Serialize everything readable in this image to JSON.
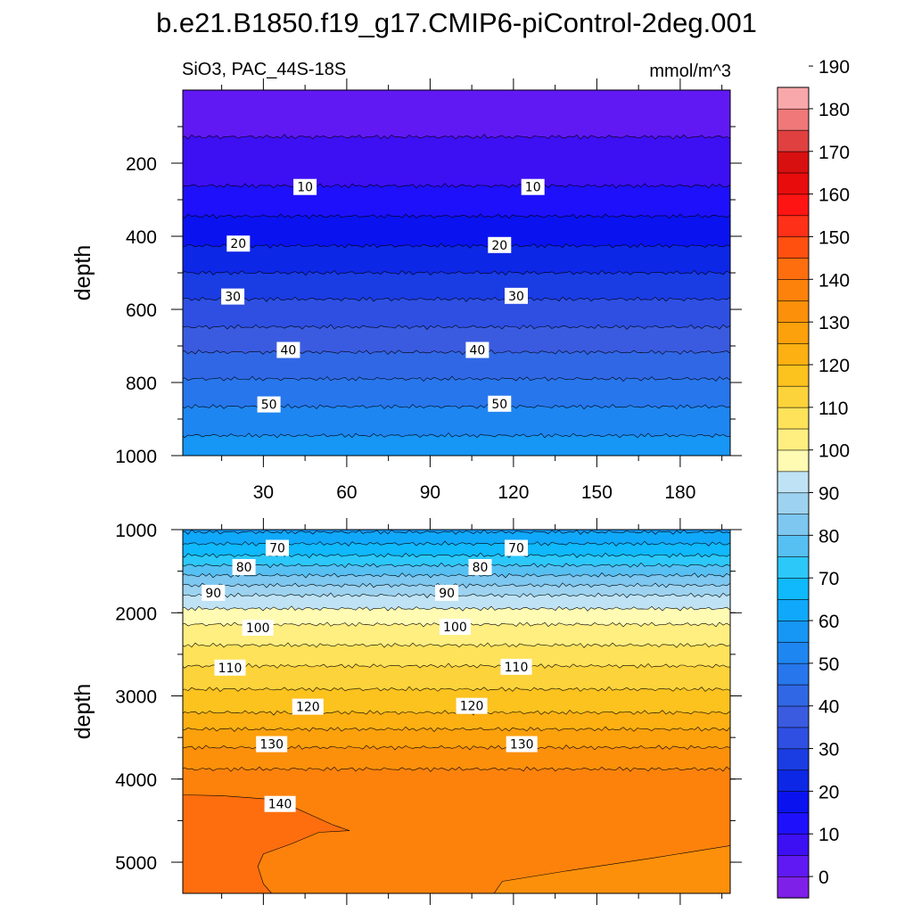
{
  "title": "b.e21.B1850.f19_g17.CMIP6-piControl-2deg.001",
  "variable_label": "SiO3, PAC_44S-18S",
  "units_label": "mmol/m^3",
  "colors": {
    "colorbar": [
      "#7f20e8",
      "#6019f3",
      "#3d0ff3",
      "#1e10fb",
      "#0a12f0",
      "#0d27e6",
      "#1a3ce3",
      "#2e4fe2",
      "#3a5be0",
      "#3067e5",
      "#2776ec",
      "#1e86f1",
      "#1696f5",
      "#10a8fa",
      "#0fb9fb",
      "#2cc8fa",
      "#56c0f3",
      "#7dc7f0",
      "#9dd3f0",
      "#bfe3f5",
      "#fffbb3",
      "#ffee80",
      "#fee25a",
      "#fdd33b",
      "#fcc21e",
      "#fcb012",
      "#fca00c",
      "#fc900b",
      "#fd820c",
      "#fe6e0e",
      "#ff5010",
      "#ff3018",
      "#ff1414",
      "#e80c0c",
      "#d81010",
      "#e04040",
      "#f07878",
      "#f8a8aa"
    ],
    "contour_line": "#000000"
  },
  "chart_data": [
    {
      "type": "contour",
      "panel": "upper",
      "ylabel": "depth",
      "x_ticks": [
        30,
        60,
        90,
        120,
        150,
        180
      ],
      "x_range": [
        1,
        198
      ],
      "y_ticks": [
        200,
        400,
        600,
        800,
        1000
      ],
      "y_range": [
        0,
        1000
      ],
      "y_reversed": true,
      "level_depths": [
        {
          "level": 5,
          "depth": 128
        },
        {
          "level": 10,
          "depth": 262
        },
        {
          "level": 15,
          "depth": 345
        },
        {
          "level": 20,
          "depth": 426
        },
        {
          "level": 25,
          "depth": 500
        },
        {
          "level": 30,
          "depth": 572
        },
        {
          "level": 35,
          "depth": 648
        },
        {
          "level": 40,
          "depth": 717
        },
        {
          "level": 45,
          "depth": 790
        },
        {
          "level": 50,
          "depth": 866
        },
        {
          "level": 55,
          "depth": 945
        }
      ],
      "contour_labels": [
        {
          "text": "10",
          "x": 45,
          "depth": 265
        },
        {
          "text": "10",
          "x": 127,
          "depth": 265
        },
        {
          "text": "20",
          "x": 21,
          "depth": 420
        },
        {
          "text": "20",
          "x": 115,
          "depth": 424
        },
        {
          "text": "30",
          "x": 19,
          "depth": 565
        },
        {
          "text": "30",
          "x": 121,
          "depth": 563
        },
        {
          "text": "40",
          "x": 39,
          "depth": 711
        },
        {
          "text": "40",
          "x": 107,
          "depth": 711
        },
        {
          "text": "50",
          "x": 32,
          "depth": 860
        },
        {
          "text": "50",
          "x": 115,
          "depth": 858
        }
      ]
    },
    {
      "type": "contour",
      "panel": "lower",
      "ylabel": "depth",
      "y_ticks": [
        1000,
        2000,
        3000,
        4000,
        5000
      ],
      "y_range": [
        1000,
        5375
      ],
      "y_reversed": true,
      "level_depths": [
        {
          "level": 60,
          "depth": 1030
        },
        {
          "level": 65,
          "depth": 1170
        },
        {
          "level": 70,
          "depth": 1310
        },
        {
          "level": 75,
          "depth": 1430
        },
        {
          "level": 80,
          "depth": 1550
        },
        {
          "level": 85,
          "depth": 1670
        },
        {
          "level": 90,
          "depth": 1790
        },
        {
          "level": 95,
          "depth": 1950
        },
        {
          "level": 100,
          "depth": 2140
        },
        {
          "level": 105,
          "depth": 2390
        },
        {
          "level": 110,
          "depth": 2640
        },
        {
          "level": 115,
          "depth": 2920
        },
        {
          "level": 120,
          "depth": 3200
        },
        {
          "level": 125,
          "depth": 3400
        },
        {
          "level": 130,
          "depth": 3620
        },
        {
          "level": 135,
          "depth": 3880
        }
      ],
      "region_140": {
        "description": "value > 140 near x 1–60 below ~4200 m",
        "boundary": [
          [
            1,
            4190
          ],
          [
            15,
            4200
          ],
          [
            35,
            4250
          ],
          [
            55,
            4550
          ],
          [
            61,
            4620
          ],
          [
            50,
            4640
          ],
          [
            40,
            4780
          ],
          [
            30,
            4900
          ],
          [
            28,
            5050
          ],
          [
            30,
            5260
          ],
          [
            33,
            5375
          ],
          [
            1,
            5375
          ]
        ]
      },
      "region_135_low": {
        "description": "value < 135 in the bottom-right corner",
        "boundary": [
          [
            113,
            5375
          ],
          [
            116,
            5230
          ],
          [
            140,
            5100
          ],
          [
            170,
            4950
          ],
          [
            198,
            4800
          ],
          [
            198,
            5375
          ]
        ]
      },
      "contour_labels": [
        {
          "text": "70",
          "x": 35,
          "depth": 1220
        },
        {
          "text": "70",
          "x": 121,
          "depth": 1220
        },
        {
          "text": "80",
          "x": 23,
          "depth": 1450
        },
        {
          "text": "80",
          "x": 108,
          "depth": 1450
        },
        {
          "text": "90",
          "x": 12,
          "depth": 1760
        },
        {
          "text": "90",
          "x": 96,
          "depth": 1760
        },
        {
          "text": "100",
          "x": 28,
          "depth": 2180
        },
        {
          "text": "100",
          "x": 99,
          "depth": 2170
        },
        {
          "text": "110",
          "x": 18,
          "depth": 2660
        },
        {
          "text": "110",
          "x": 121,
          "depth": 2650
        },
        {
          "text": "120",
          "x": 46,
          "depth": 3130
        },
        {
          "text": "120",
          "x": 105,
          "depth": 3120
        },
        {
          "text": "130",
          "x": 33,
          "depth": 3580
        },
        {
          "text": "130",
          "x": 123,
          "depth": 3580
        },
        {
          "text": "140",
          "x": 36,
          "depth": 4300
        }
      ]
    },
    {
      "type": "colorbar",
      "min": 0,
      "step": 5,
      "labels": [
        "0",
        "10",
        "20",
        "30",
        "40",
        "50",
        "60",
        "70",
        "80",
        "90",
        "100",
        "110",
        "120",
        "130",
        "140",
        "150",
        "160",
        "170",
        "180",
        "190"
      ],
      "label_values": [
        0,
        10,
        20,
        30,
        40,
        50,
        60,
        70,
        80,
        90,
        100,
        110,
        120,
        130,
        140,
        150,
        160,
        170,
        180,
        190
      ]
    }
  ]
}
